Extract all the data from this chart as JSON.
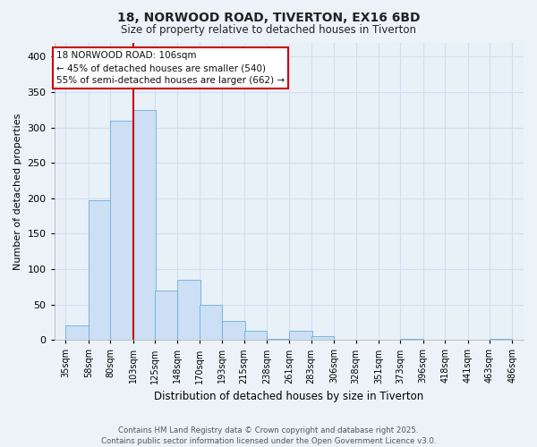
{
  "title_line1": "18, NORWOOD ROAD, TIVERTON, EX16 6BD",
  "title_line2": "Size of property relative to detached houses in Tiverton",
  "xlabel": "Distribution of detached houses by size in Tiverton",
  "ylabel": "Number of detached properties",
  "categories": [
    "35sqm",
    "58sqm",
    "80sqm",
    "103sqm",
    "125sqm",
    "148sqm",
    "170sqm",
    "193sqm",
    "215sqm",
    "238sqm",
    "261sqm",
    "283sqm",
    "306sqm",
    "328sqm",
    "351sqm",
    "373sqm",
    "396sqm",
    "418sqm",
    "441sqm",
    "463sqm",
    "486sqm"
  ],
  "bar_values": [
    20,
    197,
    310,
    325,
    70,
    85,
    50,
    27,
    13,
    2,
    13,
    5,
    0,
    0,
    0,
    2,
    0,
    0,
    0,
    2
  ],
  "bar_color": "#ccdff5",
  "bar_edge_color": "#6aaed6",
  "vline_x": 103,
  "vline_color": "#cc0000",
  "annotation_text": "18 NORWOOD ROAD: 106sqm\n← 45% of detached houses are smaller (540)\n55% of semi-detached houses are larger (662) →",
  "annotation_border_color": "#cc0000",
  "grid_color": "#d0dff0",
  "ax_background_color": "#e8f0f8",
  "fig_background_color": "#edf2f9",
  "footer_text": "Contains HM Land Registry data © Crown copyright and database right 2025.\nContains public sector information licensed under the Open Government Licence v3.0.",
  "ylim": [
    0,
    420
  ],
  "yticks": [
    0,
    50,
    100,
    150,
    200,
    250,
    300,
    350,
    400
  ]
}
